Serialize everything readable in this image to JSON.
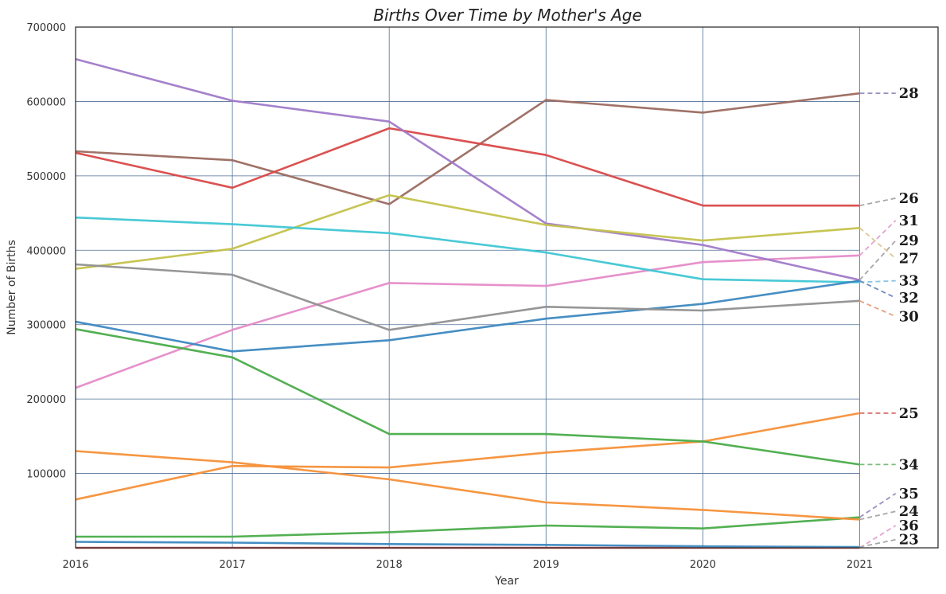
{
  "chart_data": {
    "type": "line",
    "title": "Births Over Time by Mother's Age",
    "xlabel": "Year",
    "ylabel": "Number of Births",
    "x": [
      2016,
      2017,
      2018,
      2019,
      2020,
      2021
    ],
    "x_ticks": [
      "2016",
      "2017",
      "2018",
      "2019",
      "2020",
      "2021"
    ],
    "y_ticks": [
      "100000",
      "200000",
      "300000",
      "400000",
      "500000",
      "600000",
      "700000"
    ],
    "ylim": [
      0,
      700000
    ],
    "grid": true,
    "legend": "none; series labelled at right end",
    "series": [
      {
        "name": "28",
        "color": "#9b6a60",
        "values": [
          533000,
          521000,
          462000,
          602000,
          585000,
          611000
        ]
      },
      {
        "name": "26",
        "color": "#d94848",
        "values": [
          531000,
          484000,
          564000,
          528000,
          460000,
          460000
        ]
      },
      {
        "name": "31",
        "color": "#e58bc8",
        "values": [
          215000,
          293000,
          356000,
          352000,
          384000,
          393000
        ]
      },
      {
        "name": "29",
        "color": "#a07ac8",
        "values": [
          657000,
          601000,
          573000,
          436000,
          407000,
          360000
        ]
      },
      {
        "name": "27",
        "color": "#c4c24a",
        "values": [
          375000,
          402000,
          474000,
          434000,
          413000,
          430000
        ]
      },
      {
        "name": "33",
        "color": "#3fc6d4",
        "values": [
          444000,
          435000,
          423000,
          397000,
          361000,
          357000
        ]
      },
      {
        "name": "32",
        "color": "#3c88c0",
        "values": [
          304000,
          264000,
          279000,
          308000,
          328000,
          359000
        ]
      },
      {
        "name": "30",
        "color": "#909090",
        "values": [
          381000,
          367000,
          293000,
          324000,
          319000,
          332000
        ]
      },
      {
        "name": "25",
        "color": "#f59038",
        "values": [
          65000,
          110000,
          108000,
          128000,
          143000,
          181000
        ]
      },
      {
        "name": "34",
        "color": "#4aac4a",
        "values": [
          294000,
          256000,
          153000,
          153000,
          143000,
          112000
        ]
      },
      {
        "name": "35",
        "color": "#4aac4a",
        "values": [
          15000,
          15000,
          21000,
          30000,
          26000,
          41000
        ]
      },
      {
        "name": "24",
        "color": "#f59038",
        "values": [
          130000,
          115000,
          92000,
          61000,
          51000,
          38000
        ]
      },
      {
        "name": "36",
        "color": "#d94848",
        "values": [
          0,
          0,
          0,
          0,
          0,
          0
        ]
      },
      {
        "name": "23",
        "color": "#3c88c0",
        "values": [
          8000,
          7000,
          5000,
          4000,
          2000,
          1000
        ]
      }
    ],
    "end_labels": [
      {
        "name": "28",
        "label_y": 611000,
        "leader_color": "#9b90c0"
      },
      {
        "name": "26",
        "label_y": 470000,
        "leader_color": "#a8a8a8"
      },
      {
        "name": "31",
        "label_y": 440000,
        "leader_color": "#e5a3d0"
      },
      {
        "name": "29",
        "label_y": 413000,
        "leader_color": "#a8a8a8"
      },
      {
        "name": "27",
        "label_y": 389000,
        "leader_color": "#dcc898"
      },
      {
        "name": "33",
        "label_y": 359000,
        "leader_color": "#8cc4e0"
      },
      {
        "name": "32",
        "label_y": 336000,
        "leader_color": "#6e8cc0"
      },
      {
        "name": "30",
        "label_y": 311000,
        "leader_color": "#e8a080"
      },
      {
        "name": "25",
        "label_y": 181000,
        "leader_color": "#d46a6a"
      },
      {
        "name": "34",
        "label_y": 112000,
        "leader_color": "#7cbc7c"
      },
      {
        "name": "35",
        "label_y": 73000,
        "leader_color": "#9b90c0"
      },
      {
        "name": "24",
        "label_y": 49000,
        "leader_color": "#a8a8a8"
      },
      {
        "name": "36",
        "label_y": 30000,
        "leader_color": "#e5a3d0"
      },
      {
        "name": "23",
        "label_y": 11000,
        "leader_color": "#a8a8a8"
      }
    ]
  }
}
